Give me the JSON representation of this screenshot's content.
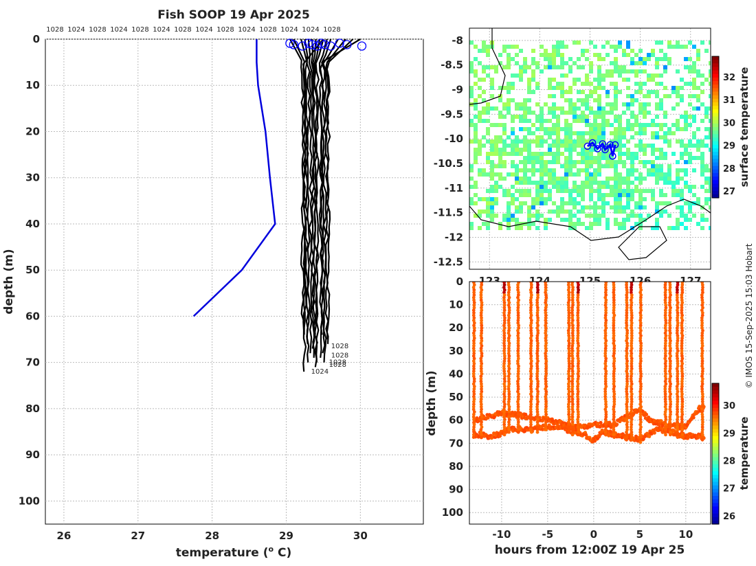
{
  "title": "Fish SOOP 19 Apr 2025",
  "credit": "© IMOS 15-Sep-2025 15:03 Hobart",
  "colors": {
    "profile_lines": "#000000",
    "climatology": "#0000dd",
    "grid": "#bbbbbb",
    "coast": "#000000",
    "track": "#0000ff"
  },
  "chart_data": [
    {
      "id": "profile",
      "type": "line",
      "xlabel": "temperature (",
      "xlabel_sup": "o",
      "xlabel_tail": " C)",
      "ylabel": "depth (m)",
      "xlim": [
        25.75,
        30.85
      ],
      "ylim": [
        105,
        0
      ],
      "xticks": [
        26,
        27,
        28,
        29,
        30
      ],
      "yticks": [
        0,
        10,
        20,
        30,
        40,
        50,
        60,
        70,
        80,
        90,
        100
      ],
      "top_pressure_labels": [
        "1028",
        "1024",
        "1028",
        "1024",
        "1028",
        "1024",
        "1028",
        "1024",
        "1028",
        "1024",
        "1028",
        "1024",
        "1024",
        "1028"
      ],
      "climatology": {
        "name": "climatology",
        "temperature": [
          28.6,
          28.6,
          28.62,
          28.72,
          28.78,
          28.85,
          28.4,
          27.75
        ],
        "depth": [
          0,
          5,
          10,
          20,
          30,
          40,
          50,
          60
        ]
      },
      "profiles": [
        {
          "t0": 29.05,
          "tb": 29.22,
          "d": 61
        },
        {
          "t0": 29.1,
          "tb": 29.25,
          "d": 64
        },
        {
          "t0": 29.2,
          "tb": 29.28,
          "d": 66
        },
        {
          "t0": 29.25,
          "tb": 29.3,
          "d": 70
        },
        {
          "t0": 29.3,
          "tb": 29.33,
          "d": 68
        },
        {
          "t0": 29.35,
          "tb": 29.36,
          "d": 67
        },
        {
          "t0": 29.4,
          "tb": 29.38,
          "d": 69
        },
        {
          "t0": 29.45,
          "tb": 29.4,
          "d": 71
        },
        {
          "t0": 29.5,
          "tb": 29.42,
          "d": 70
        },
        {
          "t0": 29.55,
          "tb": 29.47,
          "d": 69
        },
        {
          "t0": 29.6,
          "tb": 29.5,
          "d": 68
        },
        {
          "t0": 29.7,
          "tb": 29.52,
          "d": 70
        },
        {
          "t0": 29.8,
          "tb": 29.55,
          "d": 66
        },
        {
          "t0": 29.9,
          "tb": 29.57,
          "d": 65
        },
        {
          "t0": 30.0,
          "tb": 29.48,
          "d": 64
        },
        {
          "t0": 29.5,
          "tb": 29.25,
          "d": 72
        }
      ],
      "surface_circles": [
        29.05,
        29.1,
        29.22,
        29.3,
        29.35,
        29.42,
        29.47,
        29.52,
        29.6,
        29.72,
        29.82,
        30.02
      ],
      "end_labels": [
        {
          "text": "1028",
          "t": 29.55,
          "d": 66.5
        },
        {
          "text": "1028",
          "t": 29.55,
          "d": 68.5
        },
        {
          "text": "1028",
          "t": 29.52,
          "d": 70
        },
        {
          "text": "1028",
          "t": 29.52,
          "d": 70.5
        },
        {
          "text": "1024",
          "t": 29.28,
          "d": 72
        }
      ]
    },
    {
      "id": "map",
      "type": "heatmap",
      "colorbar_label": "surface temperature",
      "colorbar_ticks": [
        27,
        28,
        29,
        30,
        31,
        32
      ],
      "colorbar_range": [
        26.7,
        32.9
      ],
      "ylim": [
        -12.65,
        -7.75
      ],
      "xlim": [
        122.6,
        127.4
      ],
      "yticks": [
        -8,
        -8.5,
        -9,
        -9.5,
        -10,
        -10.5,
        -11,
        -11.5,
        -12,
        -12.5
      ],
      "ytick_labels": [
        "-8",
        "-8.5",
        "-9",
        "-9.5",
        "-10",
        "-10.5",
        "-11",
        "-11.5",
        "-12",
        "-12.5"
      ],
      "xticks": [
        123,
        124,
        125,
        126,
        127
      ],
      "xtick_labels": [
        "123",
        "124",
        "125",
        "126",
        "127"
      ],
      "track": [
        {
          "lon": 124.95,
          "lat": -10.15
        },
        {
          "lon": 125.05,
          "lat": -10.08
        },
        {
          "lon": 125.15,
          "lat": -10.2
        },
        {
          "lon": 125.25,
          "lat": -10.1
        },
        {
          "lon": 125.3,
          "lat": -10.22
        },
        {
          "lon": 125.4,
          "lat": -10.12
        },
        {
          "lon": 125.45,
          "lat": -10.35
        },
        {
          "lon": 125.5,
          "lat": -10.12
        }
      ]
    },
    {
      "id": "section",
      "type": "scatter",
      "xlabel": "hours from 12:00Z 19 Apr 25",
      "ylabel": "depth (m)",
      "colorbar_label": "temperature",
      "colorbar_ticks": [
        26,
        27,
        28,
        29,
        30
      ],
      "colorbar_range": [
        25.7,
        30.8
      ],
      "xlim": [
        -13.5,
        12.7
      ],
      "ylim": [
        105,
        0
      ],
      "xticks": [
        -10,
        -5,
        0,
        5,
        10
      ],
      "yticks": [
        0,
        10,
        20,
        30,
        40,
        50,
        60,
        70,
        80,
        90,
        100
      ],
      "casts": [
        -13,
        -12.2,
        -9.7,
        -9.2,
        -8.2,
        -6.8,
        -6.1,
        -5.2,
        -2.7,
        -2.3,
        -1.7,
        1.3,
        2.2,
        3.6,
        4.1,
        5.1,
        7.8,
        8.3,
        9.1,
        9.6,
        11.8
      ],
      "bottom_trace_a": [
        [
          -13,
          66
        ],
        [
          -11,
          67
        ],
        [
          -9,
          64
        ],
        [
          -7,
          64
        ],
        [
          -5,
          63
        ],
        [
          -3,
          64
        ],
        [
          -1,
          66
        ],
        [
          0,
          69
        ],
        [
          1,
          65
        ],
        [
          3,
          67
        ],
        [
          5,
          68
        ],
        [
          7,
          64
        ],
        [
          8.5,
          65
        ],
        [
          10,
          67
        ],
        [
          12,
          67
        ]
      ],
      "bottom_trace_b": [
        [
          -13,
          60
        ],
        [
          -12,
          59
        ],
        [
          -10,
          57
        ],
        [
          -8,
          58
        ],
        [
          -6,
          59
        ],
        [
          -4,
          61
        ],
        [
          -2,
          63
        ],
        [
          0,
          62
        ],
        [
          2,
          62
        ],
        [
          4,
          58
        ],
        [
          5,
          55
        ],
        [
          6,
          60
        ],
        [
          8,
          62
        ],
        [
          10,
          63
        ],
        [
          11.5,
          55
        ],
        [
          12,
          55
        ]
      ]
    }
  ]
}
